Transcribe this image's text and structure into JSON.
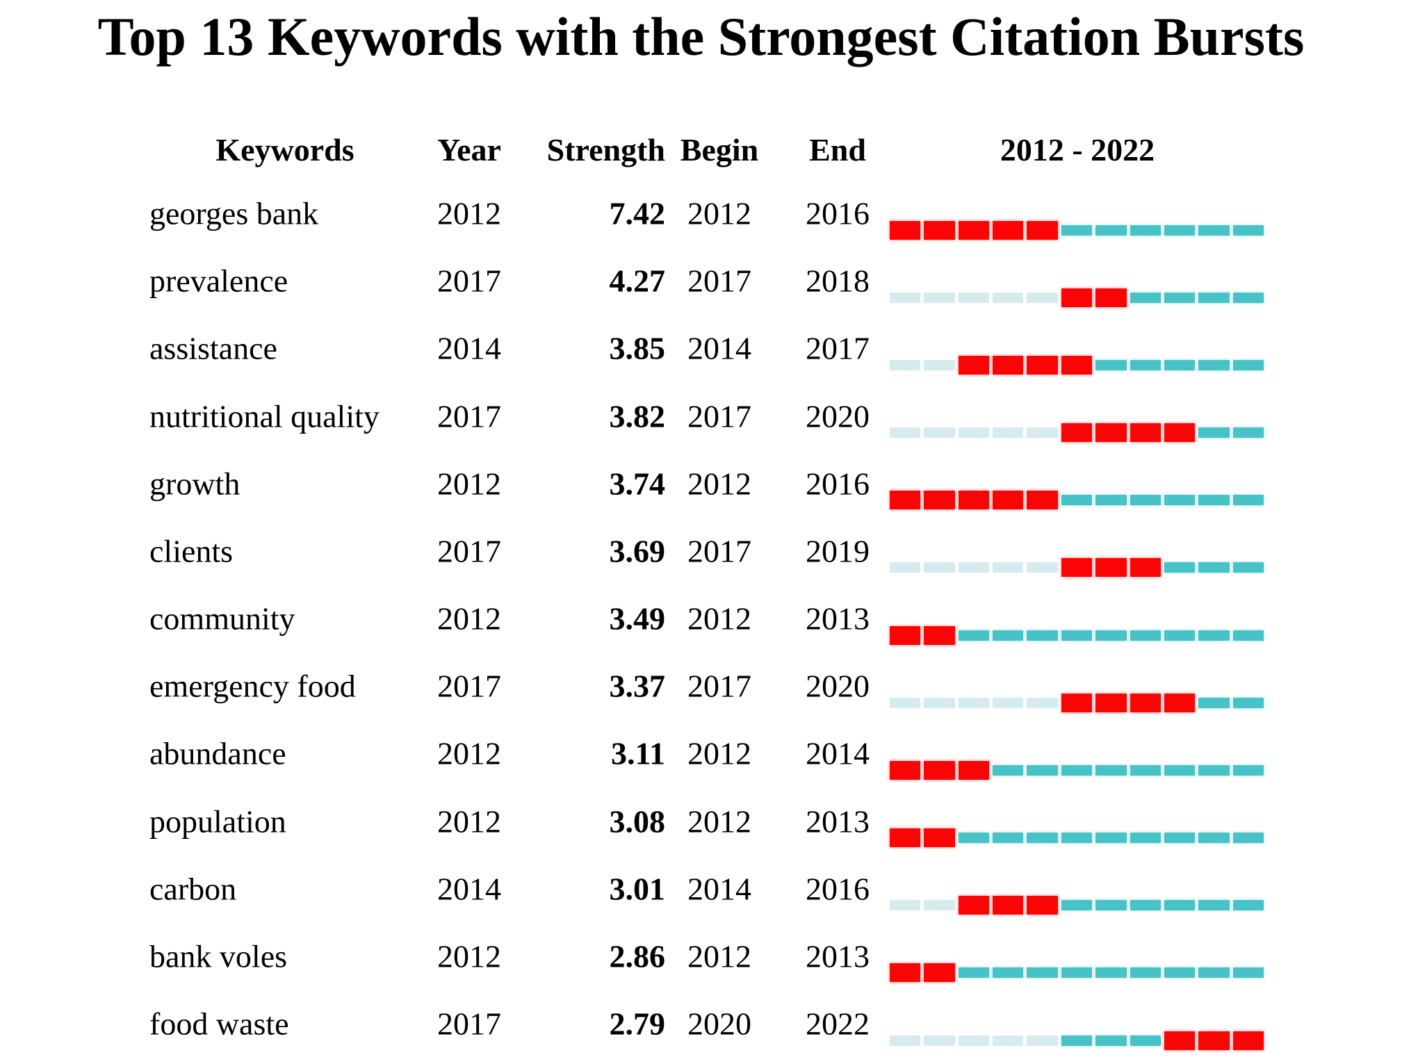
{
  "title": "Top 13 Keywords with the Strongest Citation Bursts",
  "header": {
    "keywords": "Keywords",
    "year": "Year",
    "strength": "Strength",
    "begin": "Begin",
    "end": "End",
    "period": "2012 - 2022"
  },
  "colors": {
    "burst": "#f90505",
    "active": "#47c2c6",
    "inactive": "#d6ebed"
  },
  "chart_data": {
    "type": "table",
    "title": "Top 13 Keywords with the Strongest Citation Bursts",
    "columns": [
      "Keywords",
      "Year",
      "Strength",
      "Begin",
      "End",
      "2012 - 2022"
    ],
    "timeline_range": [
      2012,
      2022
    ],
    "rows": [
      {
        "keyword": "georges bank",
        "year": 2012,
        "strength": 7.42,
        "begin": 2012,
        "end": 2016
      },
      {
        "keyword": "prevalence",
        "year": 2017,
        "strength": 4.27,
        "begin": 2017,
        "end": 2018
      },
      {
        "keyword": "assistance",
        "year": 2014,
        "strength": 3.85,
        "begin": 2014,
        "end": 2017
      },
      {
        "keyword": "nutritional quality",
        "year": 2017,
        "strength": 3.82,
        "begin": 2017,
        "end": 2020
      },
      {
        "keyword": "growth",
        "year": 2012,
        "strength": 3.74,
        "begin": 2012,
        "end": 2016
      },
      {
        "keyword": "clients",
        "year": 2017,
        "strength": 3.69,
        "begin": 2017,
        "end": 2019
      },
      {
        "keyword": "community",
        "year": 2012,
        "strength": 3.49,
        "begin": 2012,
        "end": 2013
      },
      {
        "keyword": "emergency food",
        "year": 2017,
        "strength": 3.37,
        "begin": 2017,
        "end": 2020
      },
      {
        "keyword": "abundance",
        "year": 2012,
        "strength": 3.11,
        "begin": 2012,
        "end": 2014
      },
      {
        "keyword": "population",
        "year": 2012,
        "strength": 3.08,
        "begin": 2012,
        "end": 2013
      },
      {
        "keyword": "carbon",
        "year": 2014,
        "strength": 3.01,
        "begin": 2014,
        "end": 2016
      },
      {
        "keyword": "bank voles",
        "year": 2012,
        "strength": 2.86,
        "begin": 2012,
        "end": 2013
      },
      {
        "keyword": "food waste",
        "year": 2017,
        "strength": 2.79,
        "begin": 2020,
        "end": 2022
      }
    ]
  }
}
